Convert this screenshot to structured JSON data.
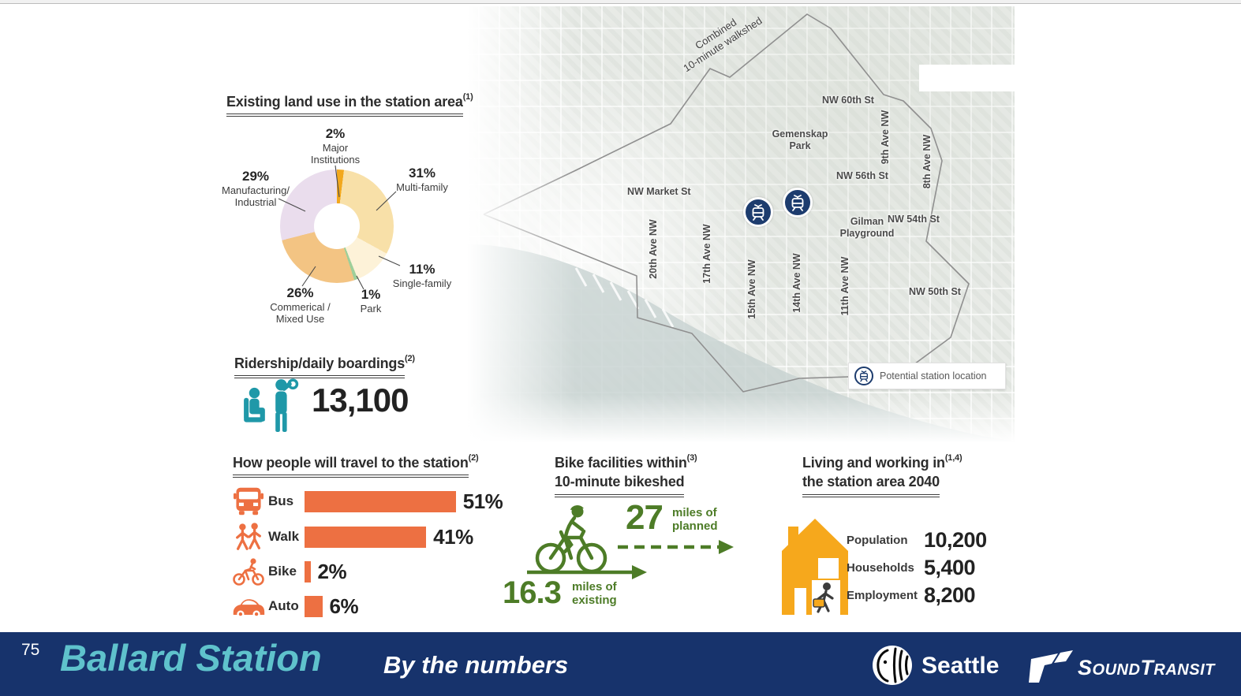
{
  "land_use": {
    "title": "Existing land use in the station area",
    "footnote": "(1)",
    "callouts": [
      {
        "pct": "2%",
        "line1": "Major",
        "line2": "Institutions"
      },
      {
        "pct": "31%",
        "line1": "Multi-family",
        "line2": ""
      },
      {
        "pct": "29%",
        "line1": "Manufacturing/",
        "line2": "Industrial"
      },
      {
        "pct": "11%",
        "line1": "Single-family",
        "line2": ""
      },
      {
        "pct": "1%",
        "line1": "Park",
        "line2": ""
      },
      {
        "pct": "26%",
        "line1": "Commerical /",
        "line2": "Mixed Use"
      }
    ]
  },
  "ridership": {
    "title": "Ridership/daily boardings",
    "footnote": "(2)",
    "value": "13,100"
  },
  "travel": {
    "title": "How people will travel to the station",
    "footnote": "(2)",
    "rows": [
      {
        "label": "Bus",
        "pct": "51%"
      },
      {
        "label": "Walk",
        "pct": "41%"
      },
      {
        "label": "Bike",
        "pct": "2%"
      },
      {
        "label": "Auto",
        "pct": "6%"
      }
    ]
  },
  "bike": {
    "title_line1": "Bike facilities within",
    "title_line2": "10-minute bikeshed",
    "footnote": "(3)",
    "planned_value": "27",
    "planned_line1": "miles of",
    "planned_line2": "planned",
    "existing_value": "16.3",
    "existing_line1": "miles of",
    "existing_line2": "existing"
  },
  "living": {
    "title_line1": "Living and working in",
    "title_line2": "the station area 2040",
    "footnote": "(1,4)",
    "stats": [
      {
        "label": "Population",
        "value": "10,200"
      },
      {
        "label": "Households",
        "value": "5,400"
      },
      {
        "label": "Employment",
        "value": "8,200"
      }
    ]
  },
  "map": {
    "walkshed_line1": "Combined",
    "walkshed_line2": "10-minute walkshed",
    "streets": [
      "NW 60th St",
      "NW 56th St",
      "NW Market St",
      "NW 54th St",
      "NW 50th St"
    ],
    "avenues": [
      "9th Ave NW",
      "8th Ave NW",
      "20th Ave NW",
      "17th Ave NW",
      "15th Ave NW",
      "14th Ave NW",
      "11th Ave NW"
    ],
    "parks": [
      {
        "line1": "Gemenskap",
        "line2": "Park"
      },
      {
        "line1": "Gilman",
        "line2": "Playground"
      }
    ],
    "legend": "Potential station location"
  },
  "footer": {
    "page": "75",
    "title": "Ballard Station",
    "subtitle": "By the numbers",
    "seattle": "Seattle",
    "st": [
      "S",
      "OUND",
      "T",
      "RANSIT"
    ]
  },
  "colors": {
    "accent_orange": "#ed7042",
    "accent_teal": "#1f98a8",
    "accent_green": "#4d7c27",
    "house_orange": "#f6a81c",
    "footer_navy": "#17336c",
    "station_navy": "#1d3c6e",
    "footer_teal": "#5fc2cc"
  },
  "chart_data": [
    {
      "type": "pie",
      "variant": "donut",
      "title": "Existing land use in the station area",
      "slices": [
        {
          "label": "Major Institutions",
          "value": 2,
          "color": "#f2a81d"
        },
        {
          "label": "Multi-family",
          "value": 31,
          "color": "#f8e0a8"
        },
        {
          "label": "Single-family",
          "value": 11,
          "color": "#fdf2d8"
        },
        {
          "label": "Park",
          "value": 1,
          "color": "#9ecf9a"
        },
        {
          "label": "Commerical / Mixed Use",
          "value": 26,
          "color": "#f3c483"
        },
        {
          "label": "Manufacturing/ Industrial",
          "value": 29,
          "color": "#eadded"
        }
      ]
    },
    {
      "type": "bar",
      "orientation": "horizontal",
      "title": "How people will travel to the station",
      "categories": [
        "Bus",
        "Walk",
        "Bike",
        "Auto"
      ],
      "values": [
        51,
        41,
        2,
        6
      ],
      "unit": "%",
      "xlim": [
        0,
        100
      ],
      "bar_color": "#ed7042"
    },
    {
      "type": "stat",
      "title": "Ridership/daily boardings",
      "value": 13100
    },
    {
      "type": "stat",
      "title": "Bike facilities within 10-minute bikeshed",
      "values": {
        "existing_miles": 16.3,
        "planned_miles": 27
      }
    },
    {
      "type": "table",
      "title": "Living and working in the station area 2040",
      "rows": [
        [
          "Population",
          10200
        ],
        [
          "Households",
          5400
        ],
        [
          "Employment",
          8200
        ]
      ]
    }
  ]
}
